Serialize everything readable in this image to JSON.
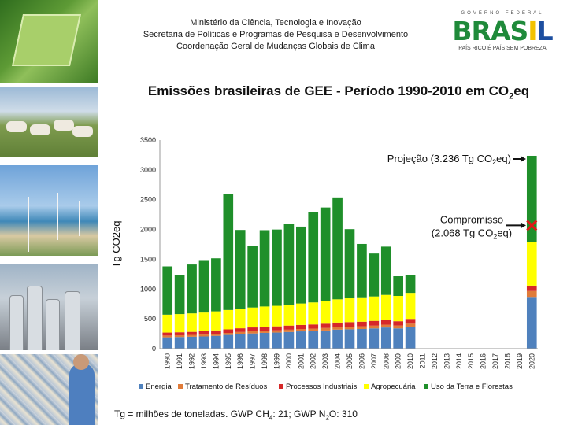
{
  "header": {
    "line1": "Ministério da Ciência, Tecnologia e Inovação",
    "line2": "Secretaria de Políticas e Programas de Pesquisa e Desenvolvimento",
    "line3": "Coordenação Geral de Mudanças Globais de Clima"
  },
  "logo": {
    "top": "GOVERNO FEDERAL",
    "word_part1": "BRAS",
    "word_part2": "I",
    "word_part3": "L",
    "slogan": "PAÍS RICO É PAÍS SEM POBREZA"
  },
  "title": {
    "main": "Emissões brasileiras de GEE - Período 1990-2010 em CO",
    "sub": "2",
    "end": "eq"
  },
  "footnote": {
    "p1": "Tg = milhões de toneladas. GWP CH",
    "s1": "4",
    "p2": ": 21; GWP N",
    "s2": "2",
    "p3": "O: 310"
  },
  "colors": {
    "energia": "#4f81bd",
    "residuos": "#e07b39",
    "industriais": "#d62828",
    "agropecuaria": "#ffff00",
    "floresta": "#1f8f2a"
  },
  "chart_data": {
    "type": "bar",
    "stacked": true,
    "ylabel": "Tg CO2eq",
    "ylim": [
      0,
      3500
    ],
    "yticks": [
      "0",
      "500",
      "1000",
      "1500",
      "2000",
      "2500",
      "3000",
      "3500"
    ],
    "categories": [
      "1990",
      "1991",
      "1992",
      "1993",
      "1994",
      "1995",
      "1996",
      "1997",
      "1998",
      "1999",
      "2000",
      "2001",
      "2002",
      "2003",
      "2004",
      "2005",
      "2006",
      "2007",
      "2008",
      "2009",
      "2010",
      "2011",
      "2012",
      "2013",
      "2014",
      "2015",
      "2016",
      "2017",
      "2018",
      "2019",
      "2020"
    ],
    "series": [
      {
        "name": "Energia",
        "key": "energia",
        "values": [
          190,
          195,
          200,
          205,
          215,
          230,
          245,
          255,
          265,
          270,
          280,
          290,
          295,
          305,
          320,
          325,
          330,
          340,
          355,
          340,
          370,
          null,
          null,
          null,
          null,
          null,
          null,
          null,
          null,
          null,
          868
        ]
      },
      {
        "name": "Tratamento de Resíduos",
        "key": "residuos",
        "values": [
          30,
          30,
          31,
          32,
          33,
          34,
          35,
          36,
          37,
          38,
          39,
          40,
          41,
          42,
          43,
          44,
          45,
          46,
          47,
          48,
          49,
          null,
          null,
          null,
          null,
          null,
          null,
          null,
          null,
          null,
          100
        ]
      },
      {
        "name": "Processos Industriais",
        "key": "industriais",
        "values": [
          50,
          50,
          51,
          54,
          58,
          60,
          62,
          65,
          66,
          66,
          68,
          68,
          70,
          72,
          75,
          76,
          77,
          80,
          80,
          72,
          80,
          null,
          null,
          null,
          null,
          null,
          null,
          null,
          null,
          null,
          90
        ]
      },
      {
        "name": "Agropecuária",
        "key": "agropecuaria",
        "values": [
          300,
          305,
          310,
          315,
          320,
          325,
          330,
          335,
          340,
          345,
          350,
          360,
          370,
          380,
          390,
          400,
          410,
          410,
          420,
          425,
          437,
          null,
          null,
          null,
          null,
          null,
          null,
          null,
          null,
          null,
          730
        ]
      },
      {
        "name": "Uso da Terra e Florestas",
        "key": "floresta",
        "values": [
          810,
          660,
          820,
          880,
          890,
          1950,
          1320,
          1030,
          1280,
          1280,
          1350,
          1290,
          1510,
          1570,
          1710,
          1160,
          895,
          720,
          810,
          330,
          300,
          null,
          null,
          null,
          null,
          null,
          null,
          null,
          null,
          null,
          1448
        ]
      }
    ],
    "annotations": [
      {
        "id": "projecao",
        "text": "Projeção (3.236 Tg CO",
        "sub": "2",
        "end": "eq)",
        "value": 3236
      },
      {
        "id": "compromisso",
        "line1": "Compromisso",
        "line2a": "(2.068 Tg CO",
        "sub": "2",
        "line2b": "eq)",
        "value": 2068
      }
    ],
    "legend_position": "bottom"
  }
}
